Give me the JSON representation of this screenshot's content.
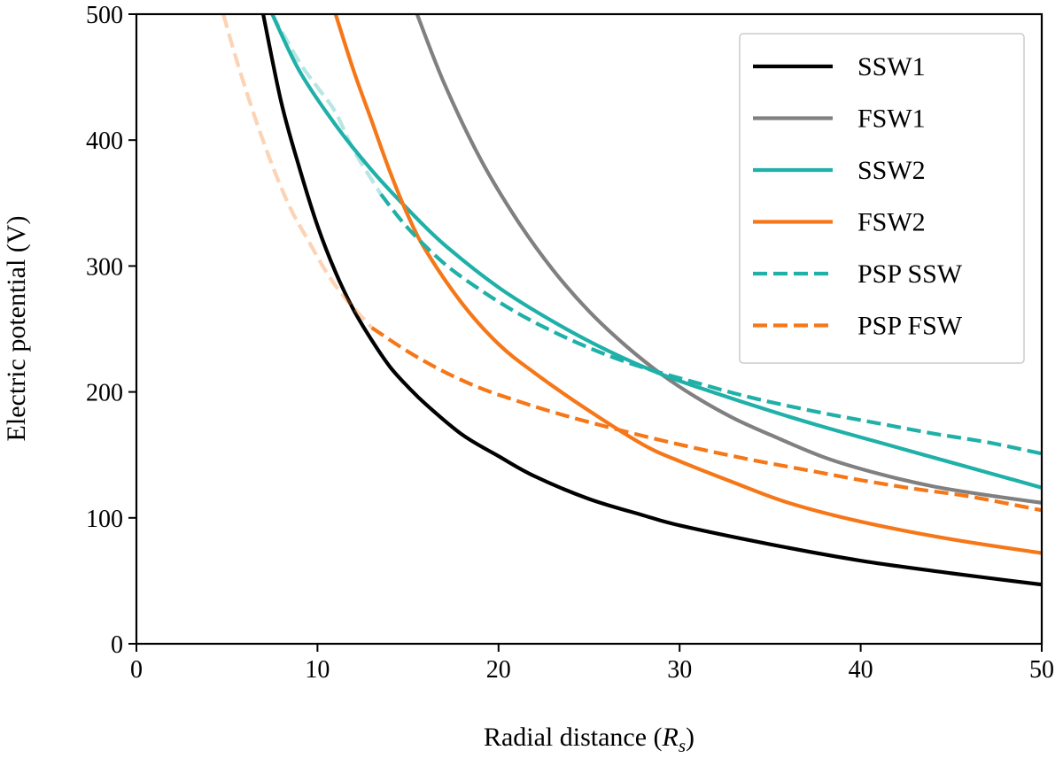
{
  "chart_data": {
    "type": "line",
    "title": "",
    "xlabel": "Radial distance (",
    "xlabel_symbol": "R",
    "xlabel_subscript": "s",
    "xlabel_suffix": ")",
    "ylabel": "Electric potential (V)",
    "xlim": [
      0,
      50
    ],
    "ylim": [
      0,
      500
    ],
    "xticks": [
      0,
      10,
      20,
      30,
      40,
      50
    ],
    "yticks": [
      0,
      100,
      200,
      300,
      400,
      500
    ],
    "grid": false,
    "legend_position": "top-right",
    "series": [
      {
        "name": "SSW1",
        "color": "#000000",
        "dashed": false,
        "opacity": 1,
        "x": [
          7.0,
          8,
          9,
          10,
          11,
          12,
          13,
          14,
          15,
          16,
          18,
          20,
          22,
          25,
          28,
          30,
          35,
          40,
          45,
          50
        ],
        "y": [
          500,
          430,
          378,
          332,
          295,
          265,
          241,
          220,
          204,
          190,
          166,
          149,
          133,
          115,
          102,
          94,
          79,
          66,
          56,
          47
        ]
      },
      {
        "name": "FSW1",
        "color": "#808080",
        "dashed": false,
        "opacity": 1,
        "x": [
          15.5,
          17,
          19,
          21,
          23,
          25,
          27,
          29,
          31,
          33,
          35,
          38,
          41,
          44,
          47,
          50
        ],
        "y": [
          500,
          445,
          385,
          337,
          297,
          264,
          237,
          214,
          195,
          179,
          166,
          148,
          135,
          125,
          118,
          112
        ]
      },
      {
        "name": "SSW2",
        "color": "#1fb0a8",
        "dashed": false,
        "opacity": 1,
        "x": [
          7.5,
          9,
          11,
          13,
          15,
          17,
          20,
          23,
          26,
          29,
          32,
          35,
          38,
          41,
          44,
          47,
          50
        ],
        "y": [
          500,
          455,
          412,
          376,
          345,
          317,
          283,
          256,
          233,
          214,
          199,
          185,
          172,
          160,
          148,
          136,
          124
        ]
      },
      {
        "name": "FSW2",
        "color": "#f57718",
        "dashed": false,
        "opacity": 1,
        "x": [
          11.0,
          12,
          13,
          14,
          15,
          16,
          18,
          20,
          22,
          25,
          28,
          30,
          33,
          36,
          40,
          45,
          50
        ],
        "y": [
          500,
          455,
          415,
          375,
          340,
          312,
          270,
          238,
          215,
          185,
          158,
          145,
          128,
          112,
          97,
          83,
          72
        ]
      },
      {
        "name": "PSP SSW",
        "color": "#1fb0a8",
        "dashed": true,
        "opacity": 1,
        "x": [
          13.5,
          15,
          17,
          19,
          21,
          23,
          25,
          27,
          29,
          31,
          33,
          35,
          38,
          41,
          44,
          47,
          50
        ],
        "y": [
          357,
          330,
          302,
          281,
          263,
          248,
          235,
          224,
          215,
          207,
          199,
          192,
          183,
          175,
          167,
          160,
          151
        ]
      },
      {
        "name": "PSP SSW (extrapolated)",
        "color": "#1fb0a8",
        "dashed": true,
        "opacity": 0.32,
        "x": [
          7.5,
          9,
          10,
          11,
          12,
          13.5
        ],
        "y": [
          500,
          462,
          442,
          422,
          392,
          357
        ]
      },
      {
        "name": "PSP FSW",
        "color": "#f57718",
        "dashed": true,
        "opacity": 1,
        "x": [
          13.0,
          15,
          17,
          19,
          21,
          23,
          25,
          28,
          31,
          34,
          37,
          40,
          43,
          46,
          50
        ],
        "y": [
          251,
          232,
          216,
          203,
          193,
          184,
          176,
          165,
          155,
          146,
          138,
          130,
          123,
          117,
          106
        ]
      },
      {
        "name": "PSP FSW (extrapolated)",
        "color": "#f57718",
        "dashed": true,
        "opacity": 0.32,
        "x": [
          4.8,
          5.5,
          6.5,
          7.5,
          8.5,
          9.5,
          10.5,
          11.5,
          13.0
        ],
        "y": [
          500,
          465,
          420,
          380,
          346,
          320,
          295,
          275,
          251
        ]
      }
    ],
    "legend": [
      {
        "label": "SSW1",
        "color": "#000000",
        "dashed": false
      },
      {
        "label": "FSW1",
        "color": "#808080",
        "dashed": false
      },
      {
        "label": "SSW2",
        "color": "#1fb0a8",
        "dashed": false
      },
      {
        "label": "FSW2",
        "color": "#f57718",
        "dashed": false
      },
      {
        "label": "PSP SSW",
        "color": "#1fb0a8",
        "dashed": true
      },
      {
        "label": "PSP FSW",
        "color": "#f57718",
        "dashed": true
      }
    ]
  }
}
